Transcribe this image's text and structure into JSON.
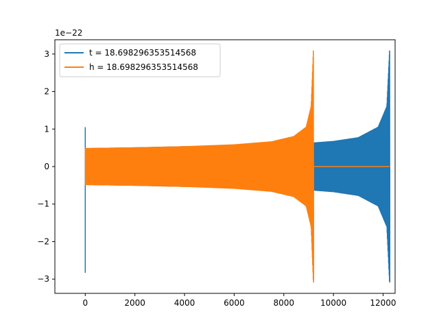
{
  "chart_data": {
    "type": "line",
    "title": "",
    "xlabel": "",
    "ylabel": "",
    "y_scale_label": "1e−22",
    "xlim": [
      -1224,
      12484
    ],
    "ylim": [
      -3.38,
      3.38
    ],
    "grid": false,
    "legend_placement": "top-left",
    "x_ticks": [
      {
        "value": 0,
        "label": "0"
      },
      {
        "value": 2000,
        "label": "2000"
      },
      {
        "value": 4000,
        "label": "4000"
      },
      {
        "value": 6000,
        "label": "6000"
      },
      {
        "value": 8000,
        "label": "8000"
      },
      {
        "value": 10000,
        "label": "10000"
      },
      {
        "value": 12000,
        "label": "12000"
      }
    ],
    "y_ticks": [
      {
        "value": -3,
        "label": "−3"
      },
      {
        "value": -2,
        "label": "−2"
      },
      {
        "value": -1,
        "label": "−1"
      },
      {
        "value": 0,
        "label": "0"
      },
      {
        "value": 1,
        "label": "1"
      },
      {
        "value": 2,
        "label": "2"
      },
      {
        "value": 3,
        "label": "3"
      }
    ],
    "series": [
      {
        "name": "t = 18.698296353514568",
        "color": "#1f77b4",
        "description": "inspiral oscillation over x 0–12270, envelope grows to ±3.08 near 12270, spike at x≈0",
        "envelope": [
          {
            "x": 0,
            "amp": 0.48
          },
          {
            "x": 2000,
            "amp": 0.5
          },
          {
            "x": 4000,
            "amp": 0.53
          },
          {
            "x": 6000,
            "amp": 0.56
          },
          {
            "x": 8000,
            "amp": 0.6
          },
          {
            "x": 9200,
            "amp": 0.63
          },
          {
            "x": 10000,
            "amp": 0.67
          },
          {
            "x": 11000,
            "amp": 0.77
          },
          {
            "x": 11800,
            "amp": 1.05
          },
          {
            "x": 12150,
            "amp": 1.6
          },
          {
            "x": 12260,
            "amp": 3.08
          }
        ],
        "initial_spike": {
          "x": 0,
          "max": 1.05,
          "min": -2.82
        },
        "end_x": 12270
      },
      {
        "name": "h = 18.698296353514568",
        "color": "#ff7f0e",
        "description": "inspiral oscillation over x 0–9200, envelope grows to ±3.08 near 9200, then flat at 0 to 12270",
        "envelope": [
          {
            "x": 0,
            "amp": 0.48
          },
          {
            "x": 2000,
            "amp": 0.5
          },
          {
            "x": 4000,
            "amp": 0.53
          },
          {
            "x": 6000,
            "amp": 0.58
          },
          {
            "x": 7500,
            "amp": 0.66
          },
          {
            "x": 8400,
            "amp": 0.8
          },
          {
            "x": 8900,
            "amp": 1.05
          },
          {
            "x": 9100,
            "amp": 1.6
          },
          {
            "x": 9190,
            "amp": 3.08
          }
        ],
        "end_x": 9200,
        "flat_until": 12270
      }
    ]
  }
}
